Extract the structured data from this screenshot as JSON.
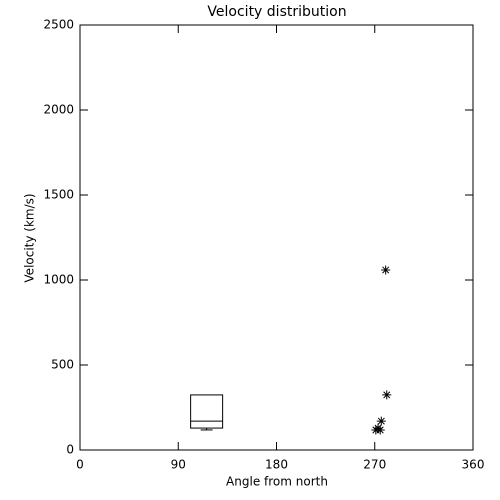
{
  "chart_data": {
    "type": "scatter",
    "title": "Velocity distribution",
    "x_label": "Angle from north",
    "y_label": "Velocity (km/s)",
    "x": [
      280,
      281,
      276,
      273,
      271,
      275
    ],
    "values": [
      1059,
      324,
      170,
      129,
      118,
      118
    ],
    "marker": "asterisk",
    "color": "#000000",
    "box": {
      "position": 116,
      "min": 118,
      "q1": 129,
      "median": 170,
      "q3": 324
    },
    "xlim": [
      0,
      360
    ],
    "xticks": [
      0,
      90,
      180,
      270,
      360
    ],
    "ylim": [
      0,
      2500
    ],
    "yticks": [
      0,
      500,
      1000,
      1500,
      2000,
      2500
    ]
  }
}
